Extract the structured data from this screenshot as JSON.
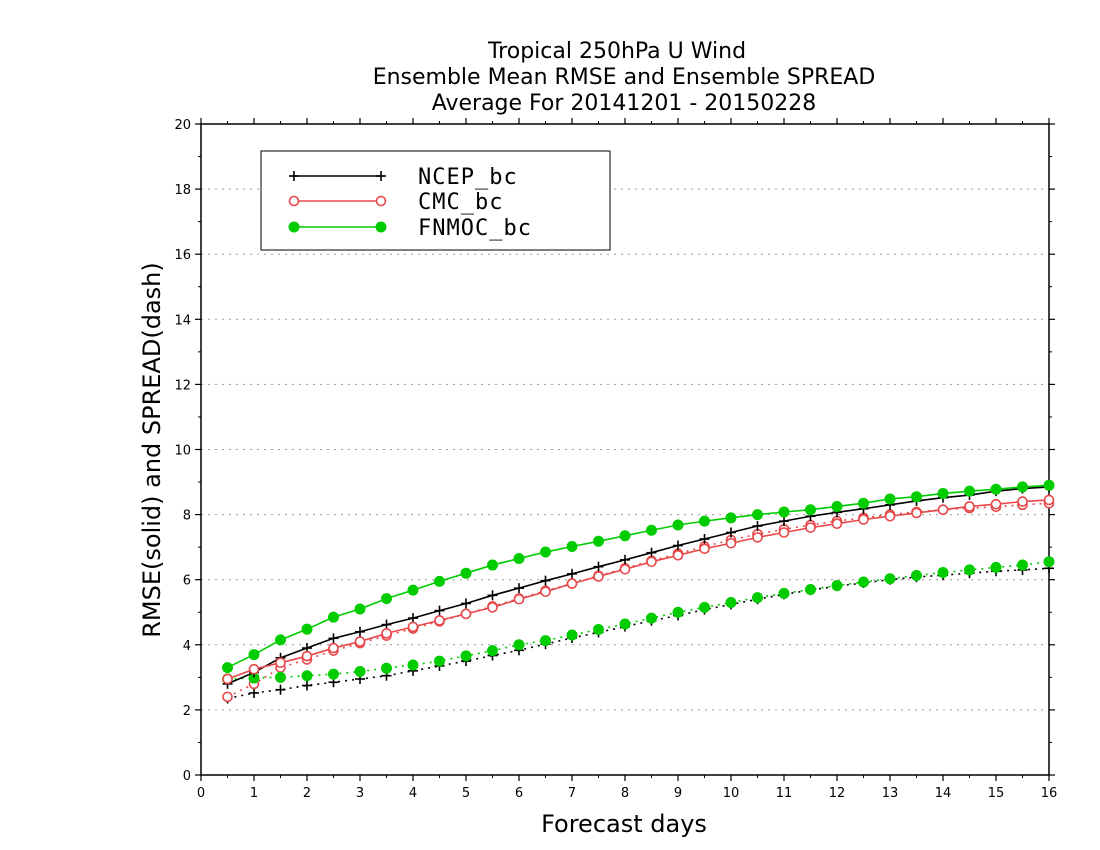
{
  "chart_data": {
    "type": "line",
    "title": "Tropical 250hPa U Wind",
    "subtitle_lines": [
      "Ensemble Mean RMSE and Ensemble SPREAD",
      "Average For 20141201 - 20150228"
    ],
    "xlabel": "Forecast days",
    "ylabel": "RMSE(solid) and SPREAD(dash)",
    "xlim": [
      0,
      16
    ],
    "ylim": [
      0,
      20
    ],
    "x_ticks": [
      "0",
      "1",
      "2",
      "3",
      "4",
      "5",
      "6",
      "7",
      "8",
      "9",
      "10",
      "11",
      "12",
      "13",
      "14",
      "15",
      "16"
    ],
    "y_ticks": [
      "0",
      "2",
      "4",
      "6",
      "8",
      "10",
      "12",
      "14",
      "16",
      "18",
      "20"
    ],
    "grid": "horizontal dotted",
    "legend_placement": "top-left",
    "x": [
      0.5,
      1,
      1.5,
      2,
      2.5,
      3,
      3.5,
      4,
      4.5,
      5,
      5.5,
      6,
      6.5,
      7,
      7.5,
      8,
      8.5,
      9,
      9.5,
      10,
      10.5,
      11,
      11.5,
      12,
      12.5,
      13,
      13.5,
      14,
      14.5,
      15,
      15.5,
      16
    ],
    "series": [
      {
        "name": "NCEP_bc",
        "color": "#000000",
        "marker": "plus",
        "rmse": [
          2.8,
          3.15,
          3.6,
          3.9,
          4.2,
          4.4,
          4.62,
          4.82,
          5.05,
          5.27,
          5.52,
          5.74,
          5.97,
          6.18,
          6.4,
          6.61,
          6.83,
          7.05,
          7.25,
          7.45,
          7.65,
          7.8,
          7.95,
          8.07,
          8.18,
          8.3,
          8.42,
          8.52,
          8.6,
          8.72,
          8.8,
          8.85
        ],
        "spread": [
          2.35,
          2.52,
          2.62,
          2.75,
          2.85,
          2.95,
          3.05,
          3.2,
          3.35,
          3.5,
          3.67,
          3.83,
          4.02,
          4.21,
          4.38,
          4.56,
          4.74,
          4.9,
          5.08,
          5.24,
          5.4,
          5.55,
          5.68,
          5.8,
          5.9,
          6.0,
          6.08,
          6.14,
          6.2,
          6.26,
          6.3,
          6.35
        ]
      },
      {
        "name": "CMC_bc",
        "color": "#e8474a",
        "marker": "open-circle",
        "rmse": [
          2.95,
          3.25,
          3.45,
          3.65,
          3.9,
          4.1,
          4.35,
          4.55,
          4.75,
          4.95,
          5.15,
          5.4,
          5.63,
          5.88,
          6.1,
          6.32,
          6.55,
          6.75,
          6.95,
          7.12,
          7.3,
          7.45,
          7.6,
          7.72,
          7.85,
          7.95,
          8.05,
          8.15,
          8.25,
          8.32,
          8.4,
          8.45
        ],
        "spread": [
          2.4,
          2.8,
          3.3,
          3.55,
          3.82,
          4.05,
          4.28,
          4.5,
          4.72,
          4.95,
          5.18,
          5.42,
          5.66,
          5.88,
          6.12,
          6.35,
          6.58,
          6.8,
          7.02,
          7.22,
          7.4,
          7.55,
          7.68,
          7.8,
          7.9,
          8.0,
          8.08,
          8.15,
          8.2,
          8.24,
          8.3,
          8.35
        ]
      },
      {
        "name": "FNMOC_bc",
        "color": "#00cc00",
        "marker": "filled-circle",
        "rmse": [
          3.3,
          3.7,
          4.15,
          4.48,
          4.85,
          5.1,
          5.42,
          5.68,
          5.95,
          6.2,
          6.45,
          6.65,
          6.85,
          7.02,
          7.18,
          7.35,
          7.52,
          7.68,
          7.8,
          7.9,
          8.0,
          8.08,
          8.15,
          8.25,
          8.35,
          8.48,
          8.55,
          8.65,
          8.72,
          8.78,
          8.85,
          8.9
        ],
        "spread": [
          2.95,
          2.98,
          3.0,
          3.05,
          3.1,
          3.18,
          3.28,
          3.38,
          3.5,
          3.66,
          3.82,
          4.0,
          4.13,
          4.3,
          4.47,
          4.64,
          4.82,
          5.0,
          5.15,
          5.3,
          5.45,
          5.58,
          5.7,
          5.82,
          5.93,
          6.03,
          6.13,
          6.22,
          6.3,
          6.38,
          6.45,
          6.55
        ]
      }
    ]
  }
}
